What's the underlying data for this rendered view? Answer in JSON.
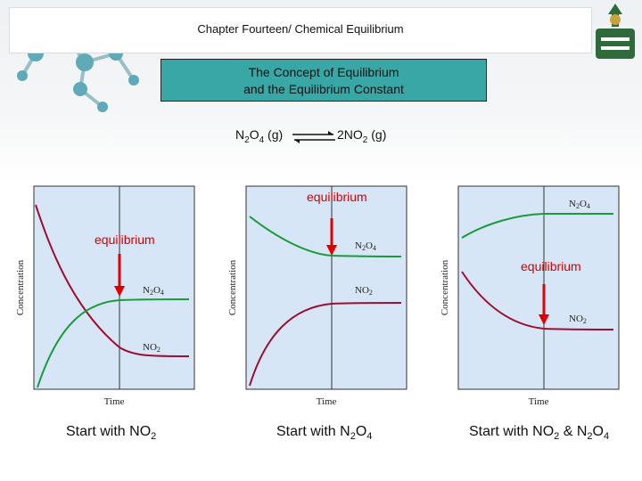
{
  "header": {
    "title": "Chapter Fourteen/ Chemical Equilibrium"
  },
  "subtitle": {
    "line1": "The Concept of Equilibrium",
    "line2": "and the Equilibrium Constant"
  },
  "reaction": {
    "left": {
      "base": "N",
      "s1": "2",
      "mid": "O",
      "s2": "4",
      "phase": " (g)"
    },
    "right": {
      "base": "2NO",
      "s1": "2",
      "phase": " (g)"
    }
  },
  "panels": [
    {
      "equilibrium_label": "equilibrium",
      "ylabel": "Concentration",
      "xlabel": "Time",
      "series": [
        {
          "label_base": "N",
          "label_s1": "2",
          "label_mid": "O",
          "label_s2": "4",
          "color": "#1a9a3a"
        },
        {
          "label_base": "NO",
          "label_s1": "2",
          "color": "#9b1030"
        }
      ],
      "caption": {
        "text": "Start with NO",
        "s1": "2"
      }
    },
    {
      "equilibrium_label": "equilibrium",
      "ylabel": "Concentration",
      "xlabel": "Time",
      "series": [
        {
          "label_base": "N",
          "label_s1": "2",
          "label_mid": "O",
          "label_s2": "4",
          "color": "#1a9a3a"
        },
        {
          "label_base": "NO",
          "label_s1": "2",
          "color": "#9b1030"
        }
      ],
      "caption": {
        "text": "Start with N",
        "s1": "2",
        "mid": "O",
        "s2": "4"
      }
    },
    {
      "equilibrium_label": "equilibrium",
      "ylabel": "Concentration",
      "xlabel": "Time",
      "series": [
        {
          "label_base": "N",
          "label_s1": "2",
          "label_mid": "O",
          "label_s2": "4",
          "color": "#1a9a3a"
        },
        {
          "label_base": "NO",
          "label_s1": "2",
          "color": "#9b1030"
        }
      ],
      "caption": {
        "text": "Start with NO",
        "s1": "2",
        "mid": " & N",
        "s2": "2",
        "end": "O",
        "s3": "4"
      }
    }
  ],
  "colors": {
    "panel_bg": "#d6e6f6",
    "panel_border": "#333333",
    "arrow": "#e00000",
    "teal": "#39a7a6"
  }
}
